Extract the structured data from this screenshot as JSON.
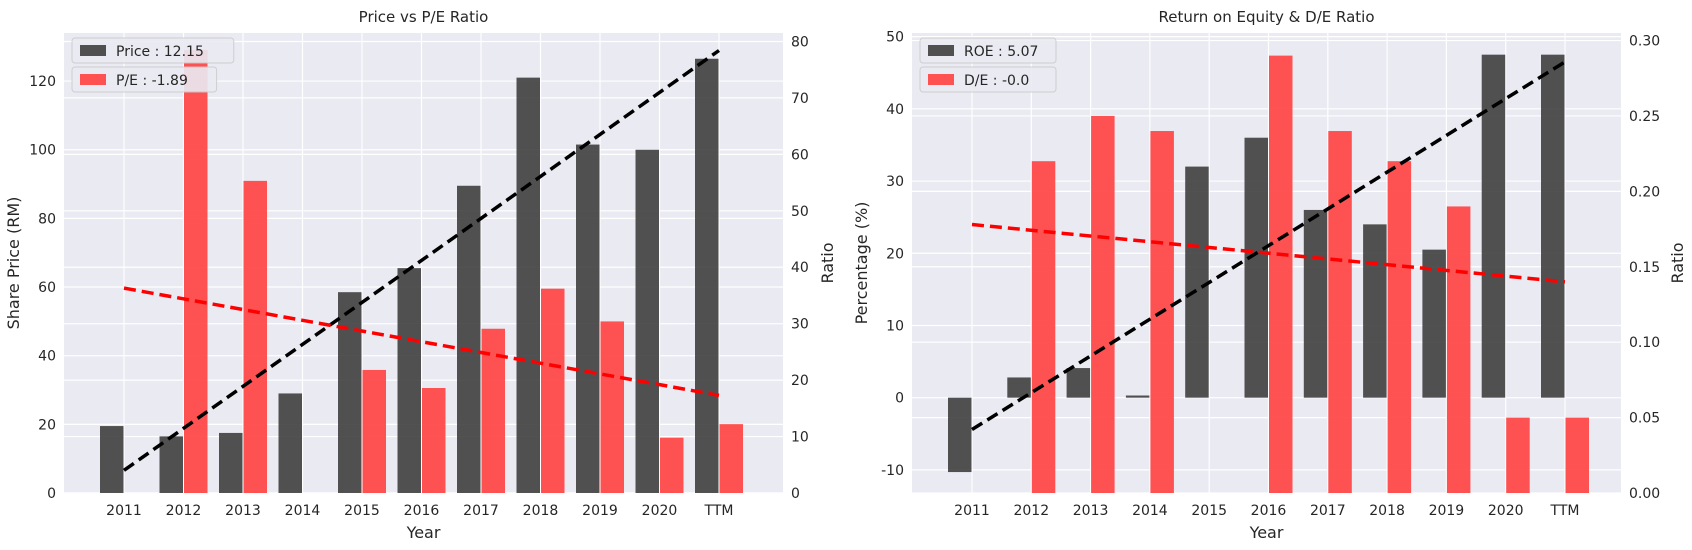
{
  "chart_data": [
    {
      "type": "bar",
      "title": "Price vs P/E Ratio",
      "xlabel": "Year",
      "ylabel": "Share Price (RM)",
      "y2label": "Ratio",
      "categories": [
        "2011",
        "2012",
        "2013",
        "2014",
        "2015",
        "2016",
        "2017",
        "2018",
        "2019",
        "2020",
        "TTM"
      ],
      "ylim": [
        0,
        134
      ],
      "y2lim": [
        0,
        81.5
      ],
      "yticks": [
        0,
        20,
        40,
        60,
        80,
        100,
        120
      ],
      "y2ticks": [
        0,
        10,
        20,
        30,
        40,
        50,
        60,
        70,
        80
      ],
      "grid": true,
      "legend_position": "top-left",
      "series": [
        {
          "name": "Price : 12.15",
          "axis": "left",
          "color": "#3a3a3a",
          "values": [
            19.5,
            16.5,
            17.5,
            29,
            58.5,
            65.5,
            89.5,
            121,
            101.5,
            100,
            126.5
          ]
        },
        {
          "name": "P/E : -1.89",
          "axis": "right",
          "color": "#ff3b3b",
          "values": [
            null,
            78.5,
            55.3,
            null,
            21.8,
            18.6,
            29.1,
            36.2,
            30.4,
            9.8,
            12.2
          ]
        }
      ],
      "trendlines": [
        {
          "axis": "left",
          "color": "#000000",
          "from": 6.6,
          "to": 128.9
        },
        {
          "axis": "right",
          "color": "#ff0000",
          "from": 36.3,
          "to": 17.3
        }
      ]
    },
    {
      "type": "bar",
      "title": "Return on Equity & D/E Ratio",
      "xlabel": "Year",
      "ylabel": "Percentage (%)",
      "y2label": "Ratio",
      "categories": [
        "2011",
        "2012",
        "2013",
        "2014",
        "2015",
        "2016",
        "2017",
        "2018",
        "2019",
        "2020",
        "TTM"
      ],
      "ylim": [
        -13.2,
        50.5
      ],
      "y2lim": [
        0,
        0.305
      ],
      "yticks": [
        -10,
        0,
        10,
        20,
        30,
        40,
        50
      ],
      "y2ticks": [
        0.0,
        0.05,
        0.1,
        0.15,
        0.2,
        0.25,
        0.3
      ],
      "y2tick_labels": [
        "0.00",
        "0.05",
        "0.10",
        "0.15",
        "0.20",
        "0.25",
        "0.30"
      ],
      "grid": true,
      "legend_position": "top-left",
      "series": [
        {
          "name": "ROE : 5.07",
          "axis": "left",
          "color": "#3a3a3a",
          "values": [
            -10.3,
            2.8,
            4.1,
            0.3,
            32,
            36,
            26,
            24,
            20.5,
            47.5,
            47.5
          ]
        },
        {
          "name": "D/E : -0.0",
          "axis": "right",
          "color": "#ff3b3b",
          "values": [
            null,
            0.22,
            0.25,
            0.24,
            null,
            0.29,
            0.24,
            0.22,
            0.19,
            0.05,
            0.05
          ]
        }
      ],
      "trendlines": [
        {
          "axis": "left",
          "color": "#000000",
          "from": -4.4,
          "to": 46.5
        },
        {
          "axis": "right",
          "color": "#ff0000",
          "from": 0.178,
          "to": 0.14
        }
      ]
    }
  ]
}
